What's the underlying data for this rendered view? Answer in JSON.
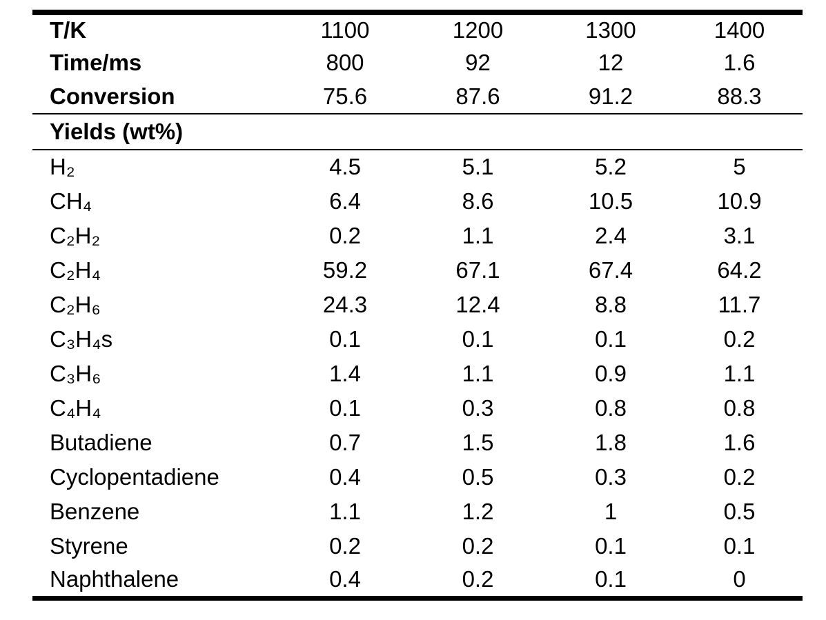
{
  "figure": {
    "background_color": "#ffffff",
    "text_color": "#000000",
    "rule_color": "#000000"
  },
  "table": {
    "header_rows": [
      {
        "label": "T/K",
        "values": [
          "1100",
          "1200",
          "1300",
          "1400"
        ]
      },
      {
        "label": "Time/ms",
        "values": [
          "800",
          "92",
          "12",
          "1.6"
        ]
      },
      {
        "label": "Conversion",
        "values": [
          "75.6",
          "87.6",
          "91.2",
          "88.3"
        ]
      }
    ],
    "section_label": "Yields (wt%)",
    "rows": [
      {
        "label": "H₂",
        "values": [
          "4.5",
          "5.1",
          "5.2",
          "5"
        ]
      },
      {
        "label": "CH₄",
        "values": [
          "6.4",
          "8.6",
          "10.5",
          "10.9"
        ]
      },
      {
        "label": "C₂H₂",
        "values": [
          "0.2",
          "1.1",
          "2.4",
          "3.1"
        ]
      },
      {
        "label": "C₂H₄",
        "values": [
          "59.2",
          "67.1",
          "67.4",
          "64.2"
        ]
      },
      {
        "label": "C₂H₆",
        "values": [
          "24.3",
          "12.4",
          "8.8",
          "11.7"
        ]
      },
      {
        "label": "C₃H₄s",
        "values": [
          "0.1",
          "0.1",
          "0.1",
          "0.2"
        ]
      },
      {
        "label": "C₃H₆",
        "values": [
          "1.4",
          "1.1",
          "0.9",
          "1.1"
        ]
      },
      {
        "label": "C₄H₄",
        "values": [
          "0.1",
          "0.3",
          "0.8",
          "0.8"
        ]
      },
      {
        "label": "Butadiene",
        "values": [
          "0.7",
          "1.5",
          "1.8",
          "1.6"
        ]
      },
      {
        "label": "Cyclopentadiene",
        "values": [
          "0.4",
          "0.5",
          "0.3",
          "0.2"
        ]
      },
      {
        "label": "Benzene",
        "values": [
          "1.1",
          "1.2",
          "1",
          "0.5"
        ]
      },
      {
        "label": "Styrene",
        "values": [
          "0.2",
          "0.2",
          "0.1",
          "0.1"
        ]
      },
      {
        "label": "Naphthalene",
        "values": [
          "0.4",
          "0.2",
          "0.1",
          "0"
        ]
      }
    ]
  },
  "chart_data": {
    "type": "table",
    "columns": [
      "",
      "1100",
      "1200",
      "1300",
      "1400"
    ],
    "rows": [
      [
        "T/K",
        "1100",
        "1200",
        "1300",
        "1400"
      ],
      [
        "Time/ms",
        "800",
        "92",
        "12",
        "1.6"
      ],
      [
        "Conversion",
        "75.6",
        "87.6",
        "91.2",
        "88.3"
      ],
      [
        "Yields (wt%)",
        "",
        "",
        "",
        ""
      ],
      [
        "H₂",
        "4.5",
        "5.1",
        "5.2",
        "5"
      ],
      [
        "CH₄",
        "6.4",
        "8.6",
        "10.5",
        "10.9"
      ],
      [
        "C₂H₂",
        "0.2",
        "1.1",
        "2.4",
        "3.1"
      ],
      [
        "C₂H₄",
        "59.2",
        "67.1",
        "67.4",
        "64.2"
      ],
      [
        "C₂H₆",
        "24.3",
        "12.4",
        "8.8",
        "11.7"
      ],
      [
        "C₃H₄s",
        "0.1",
        "0.1",
        "0.1",
        "0.2"
      ],
      [
        "C₃H₆",
        "1.4",
        "1.1",
        "0.9",
        "1.1"
      ],
      [
        "C₄H₄",
        "0.1",
        "0.3",
        "0.8",
        "0.8"
      ],
      [
        "Butadiene",
        "0.7",
        "1.5",
        "1.8",
        "1.6"
      ],
      [
        "Cyclopentadiene",
        "0.4",
        "0.5",
        "0.3",
        "0.2"
      ],
      [
        "Benzene",
        "1.1",
        "1.2",
        "1",
        "0.5"
      ],
      [
        "Styrene",
        "0.2",
        "0.2",
        "0.1",
        "0.1"
      ],
      [
        "Naphthalene",
        "0.4",
        "0.2",
        "0.1",
        "0"
      ]
    ]
  }
}
